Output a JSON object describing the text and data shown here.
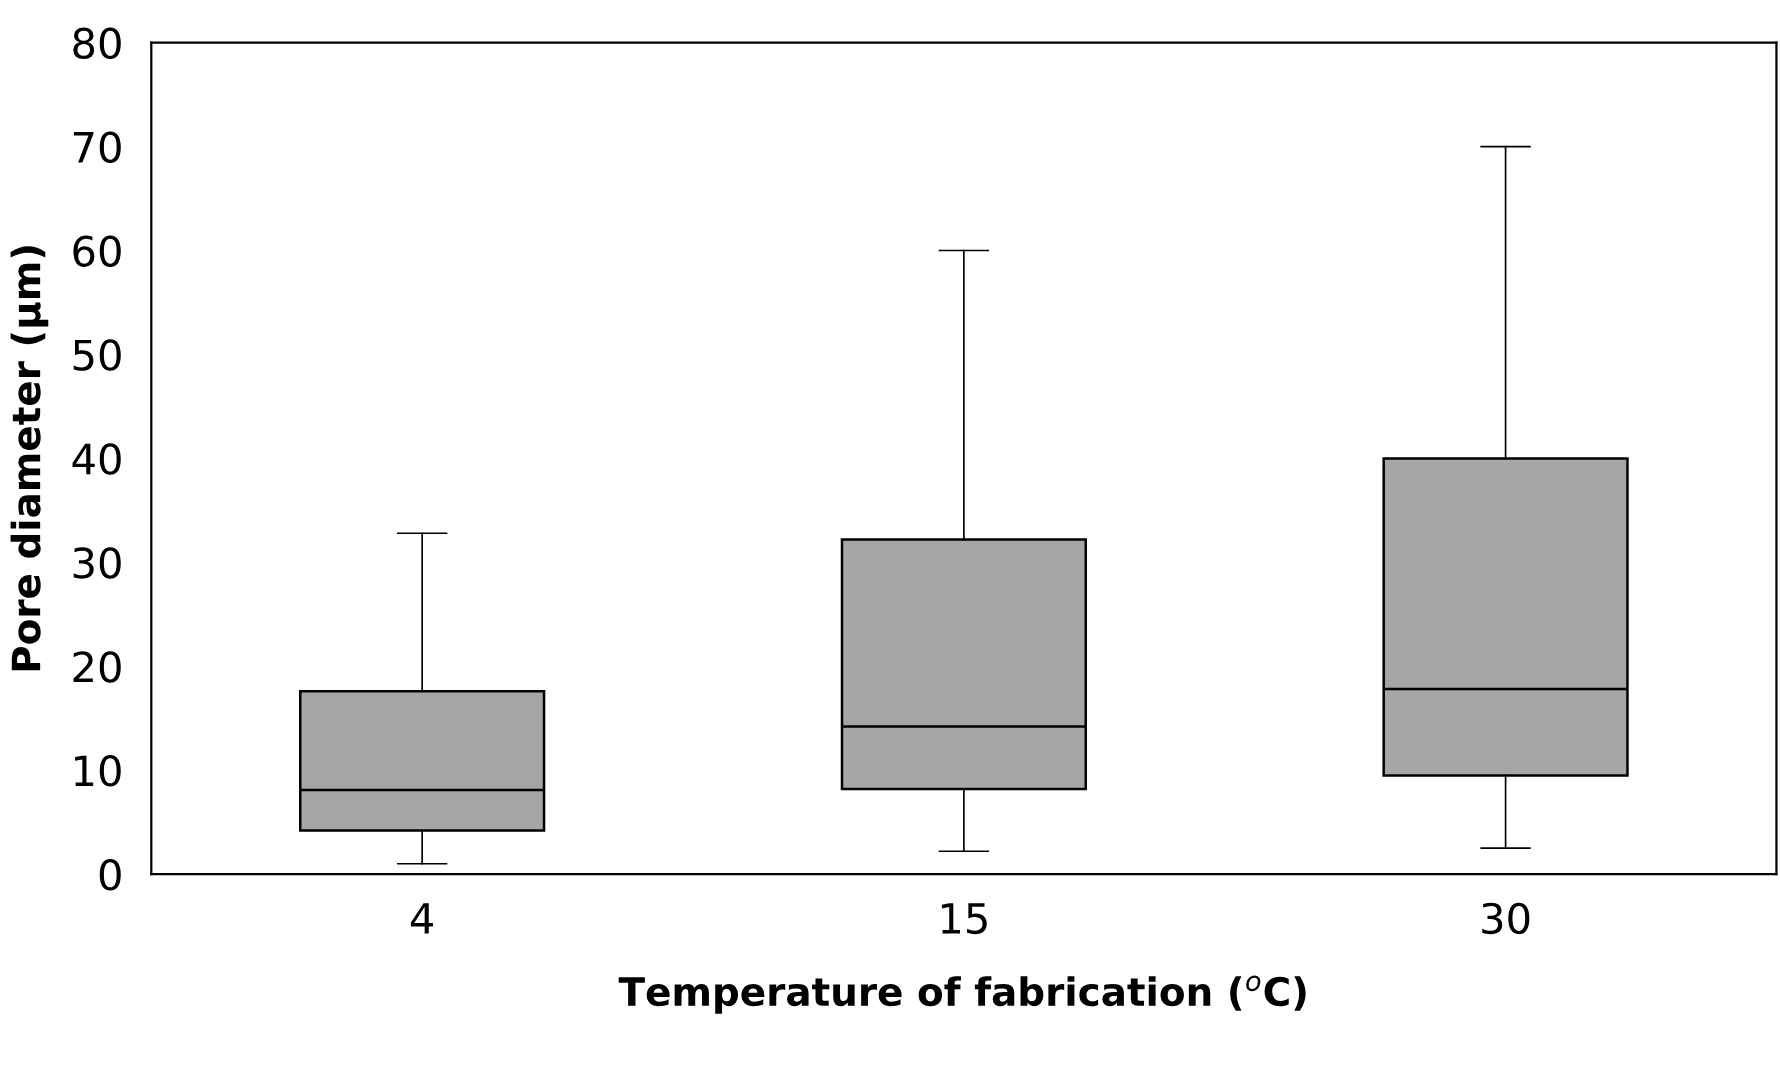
{
  "chart_data": {
    "type": "box",
    "xlabel": "Temperature of fabrication ($^{o}$C)",
    "ylabel": "Pore diameter (µm)",
    "categories": [
      "4",
      "15",
      "30"
    ],
    "boxes": [
      {
        "low": 1,
        "q1": 4.2,
        "median": 8.1,
        "q3": 17.6,
        "high": 32.8
      },
      {
        "low": 2.2,
        "q1": 8.2,
        "median": 14.2,
        "q3": 32.2,
        "high": 60
      },
      {
        "low": 2.5,
        "q1": 9.5,
        "median": 17.8,
        "q3": 40,
        "high": 70
      }
    ],
    "color": "#a6a6a6",
    "ylim": [
      0,
      80
    ],
    "yticks": [
      0,
      10,
      20,
      30,
      40,
      50,
      60,
      70,
      80
    ],
    "grid": false,
    "legend": false
  }
}
